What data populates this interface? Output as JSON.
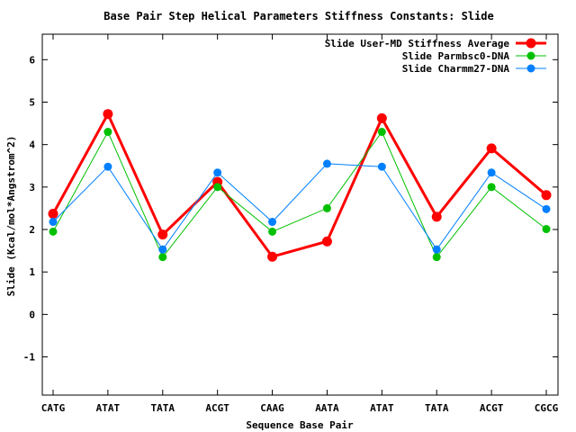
{
  "chart_data": {
    "type": "line",
    "title": "Base Pair Step Helical Parameters Stiffness Constants: Slide",
    "xlabel": "Sequence Base Pair",
    "ylabel": "Slide (Kcal/mol*Angstrom^2)",
    "ylim": [
      -1.9,
      6.6
    ],
    "yticks": [
      -1,
      0,
      1,
      2,
      3,
      4,
      5,
      6
    ],
    "categories": [
      "CATG",
      "ATAT",
      "TATA",
      "ACGT",
      "CAAG",
      "AATA",
      "ATAT",
      "TATA",
      "ACGT",
      "CGCG"
    ],
    "legend_position": "top-right",
    "grid": false,
    "series": [
      {
        "name": "Slide User-MD Stiffness Average",
        "color": "#ff0000",
        "values": [
          2.37,
          4.72,
          1.88,
          3.12,
          1.36,
          1.72,
          4.62,
          2.3,
          3.91,
          2.81
        ]
      },
      {
        "name": "Slide Parmbsc0-DNA",
        "color": "#00c000",
        "values": [
          1.95,
          4.3,
          1.35,
          3.0,
          1.95,
          2.5,
          4.3,
          1.35,
          3.0,
          2.01
        ]
      },
      {
        "name": "Slide Charmm27-DNA",
        "color": "#0080ff",
        "values": [
          2.18,
          3.48,
          1.53,
          3.34,
          2.18,
          3.55,
          3.48,
          1.53,
          3.34,
          2.48
        ]
      }
    ]
  }
}
